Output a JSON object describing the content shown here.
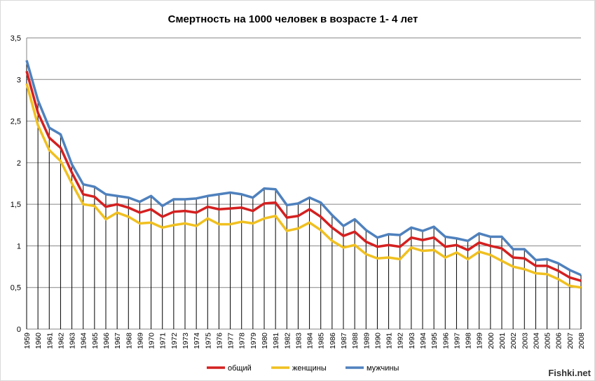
{
  "chart_data": {
    "type": "line",
    "title": "Смертность на 1000 человек в возрасте 1- 4 лет",
    "xlabel": "",
    "ylabel": "",
    "ylim": [
      0,
      3.5
    ],
    "yticks": [
      "0",
      "0,5",
      "1",
      "1,5",
      "2",
      "2,5",
      "3",
      "3,5"
    ],
    "grid": true,
    "legend_position": "bottom",
    "x": [
      "1959",
      "1960",
      "1961",
      "1962",
      "1963",
      "1964",
      "1965",
      "1966",
      "1967",
      "1968",
      "1969",
      "1970",
      "1971",
      "1972",
      "1973",
      "1974",
      "1975",
      "1976",
      "1977",
      "1978",
      "1979",
      "1980",
      "1981",
      "1982",
      "1983",
      "1984",
      "1985",
      "1986",
      "1987",
      "1988",
      "1989",
      "1990",
      "1991",
      "1992",
      "1993",
      "1994",
      "1995",
      "1996",
      "1997",
      "1998",
      "1999",
      "2000",
      "2001",
      "2002",
      "2003",
      "2004",
      "2005",
      "2006",
      "2007",
      "2008"
    ],
    "series": [
      {
        "name": "мужчины",
        "color": "#4f81bd",
        "values": [
          3.23,
          2.75,
          2.42,
          2.34,
          1.98,
          1.74,
          1.71,
          1.62,
          1.6,
          1.58,
          1.53,
          1.6,
          1.48,
          1.56,
          1.56,
          1.57,
          1.6,
          1.62,
          1.64,
          1.62,
          1.58,
          1.69,
          1.68,
          1.49,
          1.51,
          1.58,
          1.52,
          1.37,
          1.24,
          1.32,
          1.19,
          1.1,
          1.14,
          1.13,
          1.22,
          1.18,
          1.23,
          1.11,
          1.09,
          1.06,
          1.15,
          1.11,
          1.11,
          0.96,
          0.96,
          0.83,
          0.84,
          0.79,
          0.71,
          0.65
        ]
      },
      {
        "name": "женщины",
        "color": "#f0c020",
        "values": [
          2.95,
          2.45,
          2.15,
          2.02,
          1.75,
          1.5,
          1.48,
          1.32,
          1.4,
          1.35,
          1.27,
          1.28,
          1.22,
          1.25,
          1.27,
          1.24,
          1.33,
          1.26,
          1.26,
          1.29,
          1.27,
          1.33,
          1.36,
          1.18,
          1.21,
          1.28,
          1.19,
          1.06,
          0.98,
          1.01,
          0.9,
          0.85,
          0.86,
          0.84,
          0.98,
          0.94,
          0.95,
          0.86,
          0.92,
          0.84,
          0.93,
          0.89,
          0.82,
          0.75,
          0.72,
          0.67,
          0.66,
          0.6,
          0.52,
          0.5
        ]
      },
      {
        "name": "общий",
        "color": "#d42020",
        "values": [
          3.1,
          2.6,
          2.3,
          2.18,
          1.88,
          1.62,
          1.59,
          1.47,
          1.5,
          1.46,
          1.4,
          1.44,
          1.35,
          1.41,
          1.42,
          1.4,
          1.47,
          1.44,
          1.45,
          1.46,
          1.42,
          1.51,
          1.52,
          1.34,
          1.36,
          1.44,
          1.35,
          1.22,
          1.12,
          1.17,
          1.05,
          0.99,
          1.01,
          0.99,
          1.1,
          1.07,
          1.1,
          0.99,
          1.01,
          0.95,
          1.04,
          1.0,
          0.97,
          0.86,
          0.85,
          0.76,
          0.76,
          0.7,
          0.62,
          0.58
        ]
      }
    ],
    "legend": [
      "общий",
      "женщины",
      "мужчины"
    ]
  },
  "watermark": "Fishki.net"
}
